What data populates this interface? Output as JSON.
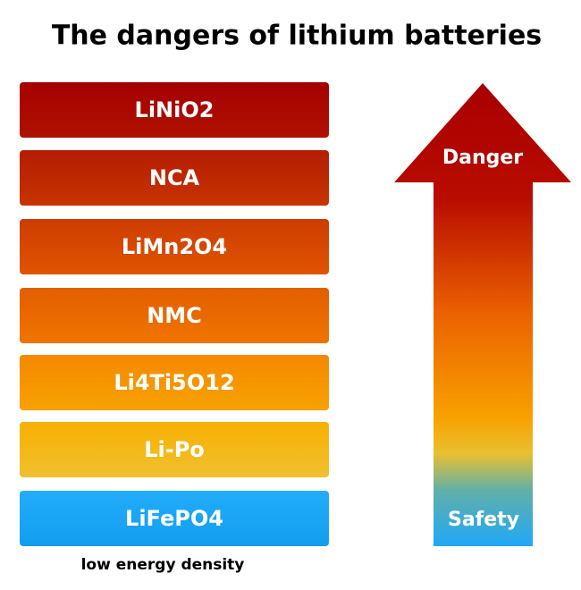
{
  "title": "The dangers of lithium batteries",
  "items": [
    "LiNiO2",
    "NCA",
    "LiMn2O4",
    "NMC",
    "Li4Ti5O12",
    "Li-Po",
    "LiFePO4"
  ],
  "arrow": {
    "top_label": "Danger",
    "bottom_label": "Safety"
  },
  "footnote": "low energy density"
}
